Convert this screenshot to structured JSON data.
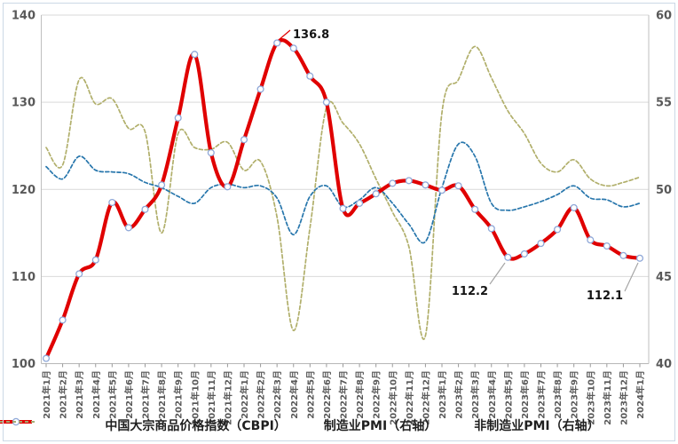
{
  "chart_data": {
    "type": "line",
    "title": "",
    "x": [
      "2021年1月",
      "2021年2月",
      "2021年3月",
      "2021年4月",
      "2021年5月",
      "2021年6月",
      "2021年7月",
      "2021年8月",
      "2021年9月",
      "2021年10月",
      "2021年11月",
      "2021年12月",
      "2022年1月",
      "2022年2月",
      "2022年3月",
      "2022年4月",
      "2022年5月",
      "2022年6月",
      "2022年7月",
      "2022年8月",
      "2022年9月",
      "2022年10月",
      "2022年11月",
      "2022年12月",
      "2023年1月",
      "2023年2月",
      "2023年3月",
      "2023年4月",
      "2023年5月",
      "2023年6月",
      "2023年7月",
      "2023年8月",
      "2023年9月",
      "2023年10月",
      "2023年11月",
      "2023年12月",
      "2024年1月"
    ],
    "series": [
      {
        "name": "中国大宗商品价格指数（CBPI）",
        "axis": "left",
        "style": "solid-markers",
        "color": "#e00000",
        "marker_fill": "#ffffff",
        "marker_ring": "#8fa8d8",
        "values": [
          100.6,
          105.0,
          110.3,
          111.9,
          118.5,
          115.6,
          117.7,
          120.5,
          128.2,
          135.5,
          124.2,
          120.3,
          125.7,
          131.5,
          136.8,
          136.2,
          133.0,
          130.0,
          117.8,
          118.4,
          119.5,
          120.7,
          121.0,
          120.5,
          119.9,
          120.4,
          117.7,
          115.5,
          112.2,
          112.6,
          113.8,
          115.4,
          117.9,
          114.2,
          113.5,
          112.4,
          112.1
        ]
      },
      {
        "name": "制造业PMI（右轴）",
        "axis": "right",
        "style": "dashed",
        "color": "#2776ac",
        "values": [
          51.3,
          50.6,
          51.9,
          51.1,
          51.0,
          50.9,
          50.4,
          50.1,
          49.6,
          49.2,
          50.1,
          50.3,
          50.1,
          50.2,
          49.5,
          47.4,
          49.6,
          50.2,
          49.0,
          49.4,
          50.1,
          49.2,
          48.0,
          47.0,
          50.1,
          52.6,
          51.9,
          49.2,
          48.8,
          49.0,
          49.3,
          49.7,
          50.2,
          49.5,
          49.4,
          49.0,
          49.2
        ]
      },
      {
        "name": "非制造业PMI（右轴）",
        "axis": "right",
        "style": "dashed",
        "color": "#b1af6b",
        "values": [
          52.4,
          51.4,
          56.3,
          54.9,
          55.2,
          53.5,
          53.3,
          47.5,
          53.2,
          52.4,
          52.3,
          52.7,
          51.1,
          51.6,
          48.4,
          41.9,
          47.8,
          54.7,
          53.8,
          52.6,
          50.6,
          48.7,
          46.7,
          41.6,
          54.4,
          56.3,
          58.2,
          56.4,
          54.5,
          53.2,
          51.5,
          51.0,
          51.7,
          50.6,
          50.2,
          50.4,
          50.7
        ]
      }
    ],
    "left_axis": {
      "min": 100,
      "max": 140,
      "ticks": [
        100,
        110,
        120,
        130,
        140
      ]
    },
    "right_axis": {
      "min": 40,
      "max": 60,
      "ticks": [
        40,
        45,
        50,
        55,
        60
      ]
    },
    "grid": "horizontal",
    "legend_position": "bottom",
    "annotations": [
      {
        "text": "136.8",
        "series": 0,
        "index": 14
      },
      {
        "text": "112.2",
        "series": 0,
        "index": 28
      },
      {
        "text": "112.1",
        "series": 0,
        "index": 36
      }
    ],
    "colors": {
      "grid": "#d9d9d9",
      "axis": "#bfbfbf",
      "tick_label": "#595959",
      "annotation_text": "#141414",
      "leader": "#a6a6a6"
    }
  }
}
